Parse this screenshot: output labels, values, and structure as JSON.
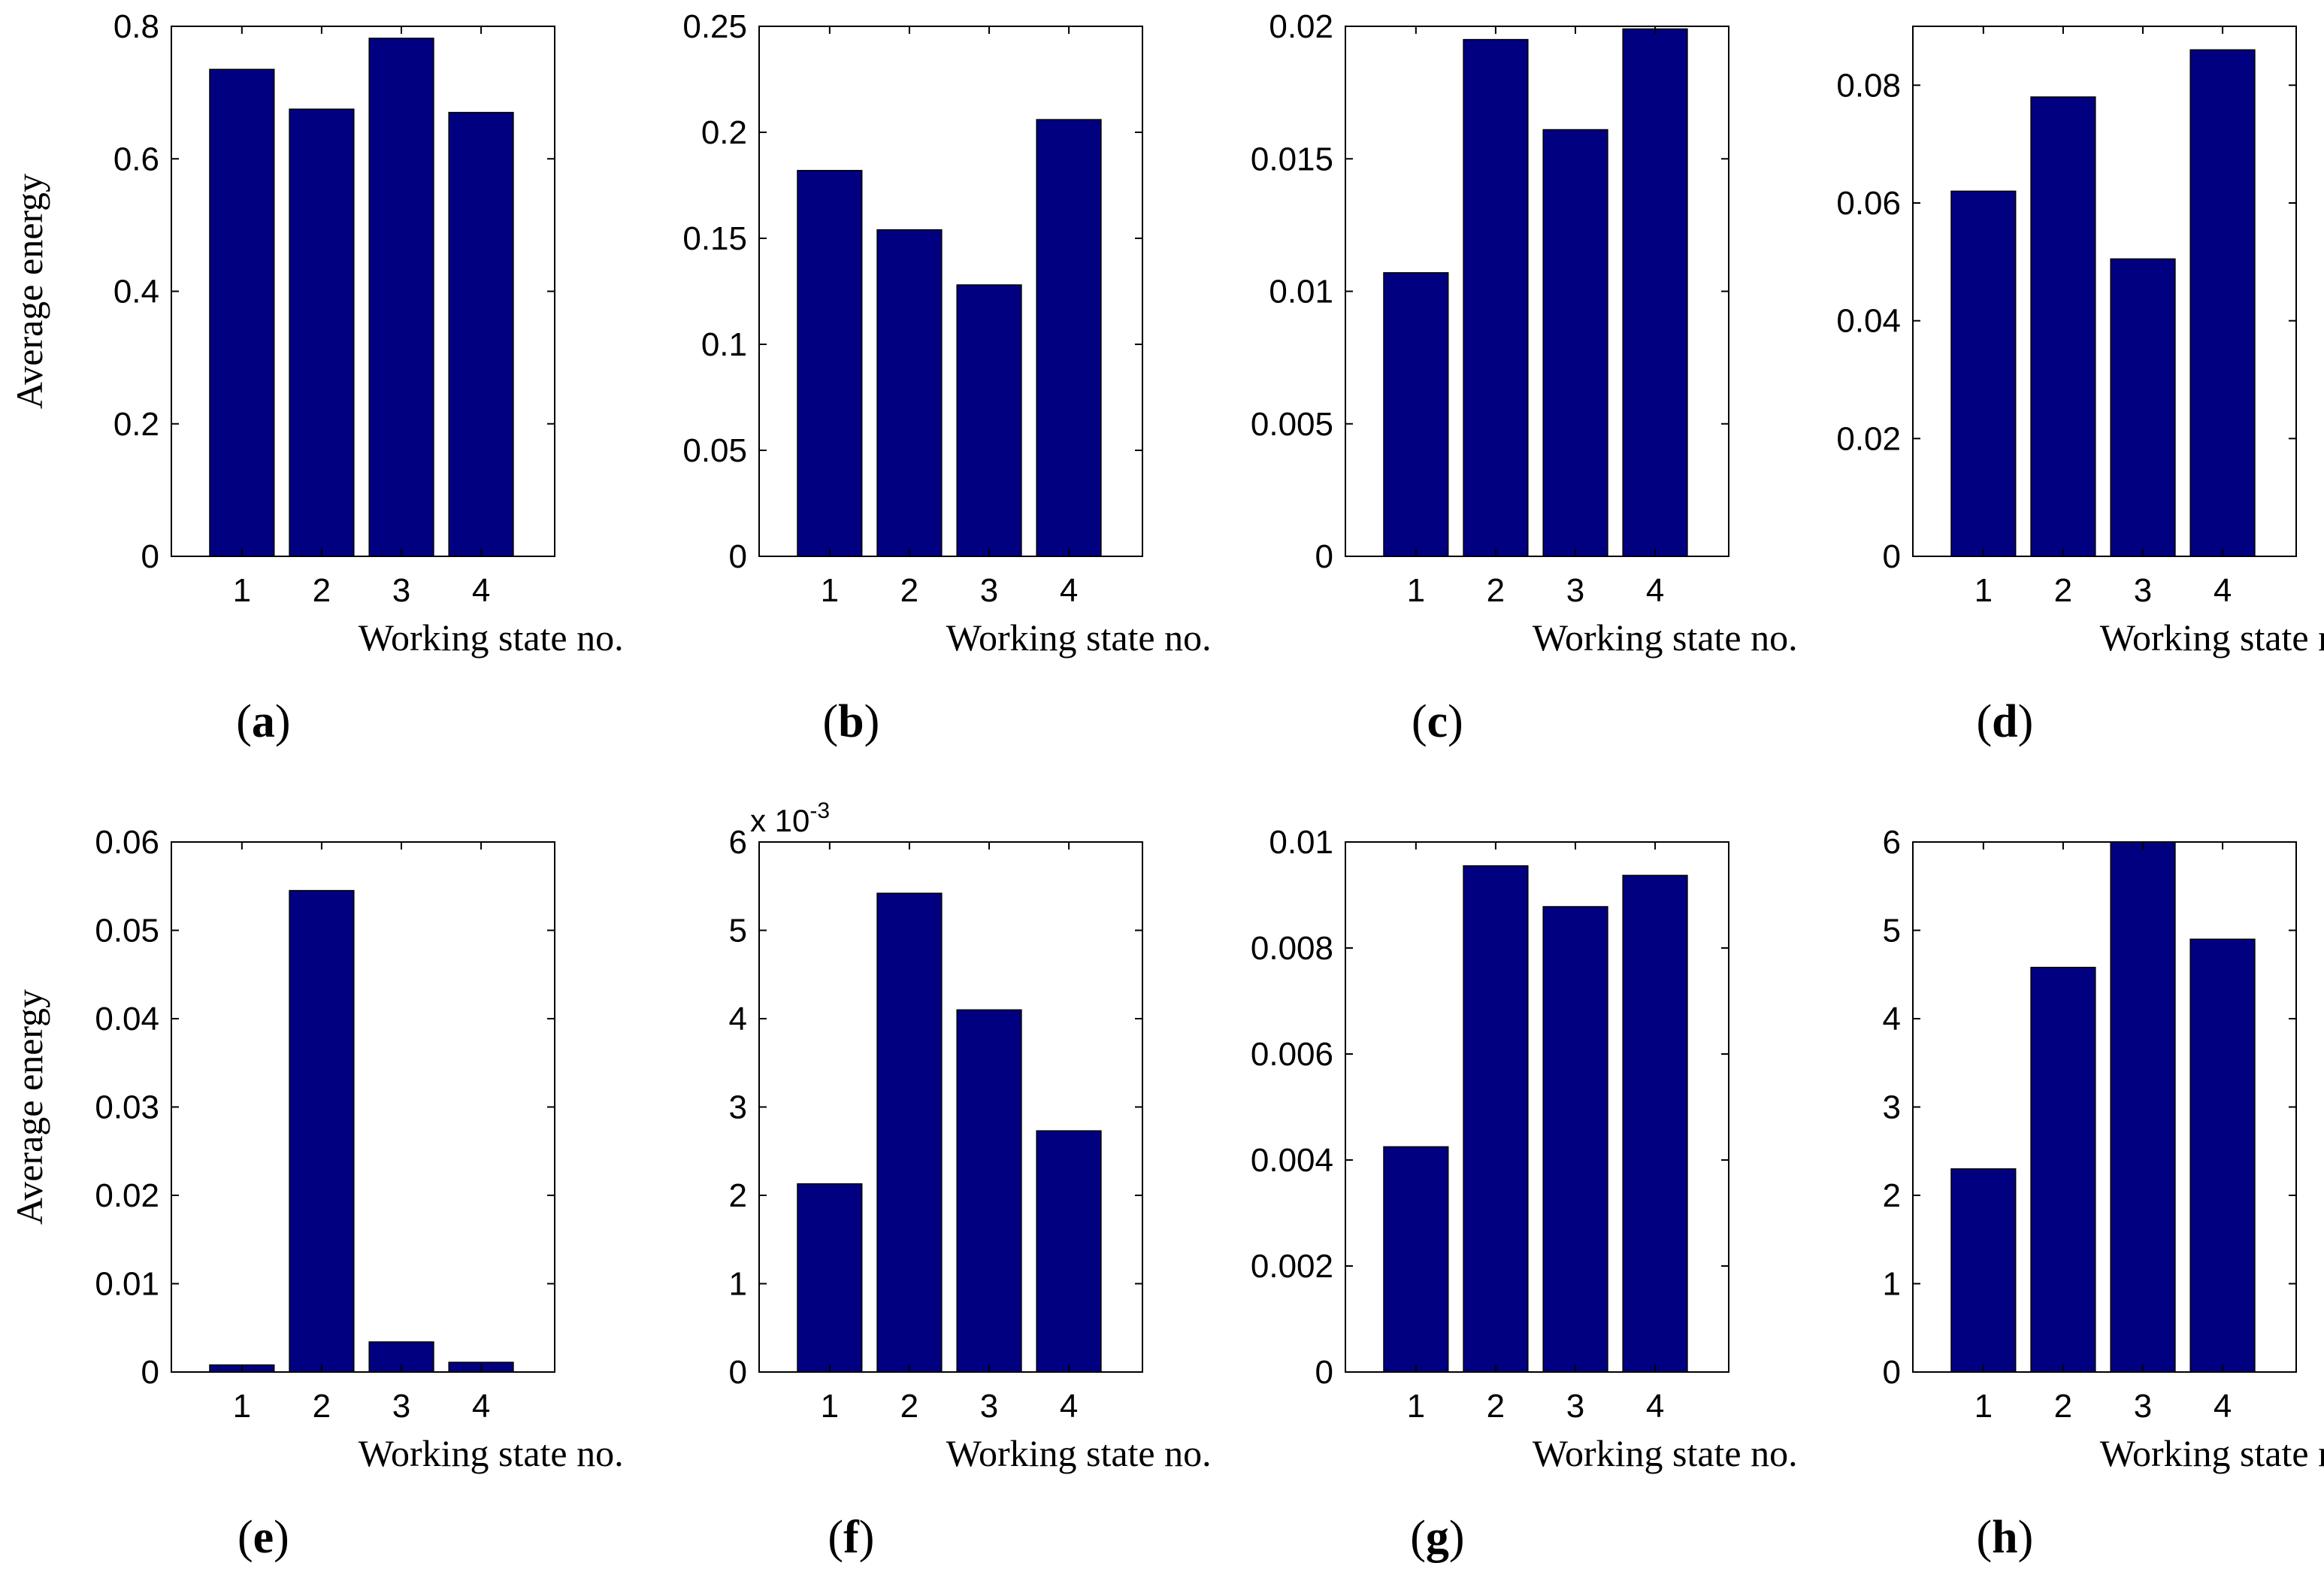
{
  "colors": {
    "bar": "#000080",
    "bar_edge": "#000000",
    "axis": "#000000",
    "background": "#ffffff"
  },
  "chart_data": [
    {
      "type": "bar",
      "panel": "a",
      "categories": [
        "1",
        "2",
        "3",
        "4"
      ],
      "values": [
        0.735,
        0.675,
        0.782,
        0.67
      ],
      "ylim": [
        0,
        0.8
      ],
      "yticks": [
        "0",
        "0.2",
        "0.4",
        "0.6",
        "0.8"
      ],
      "ytick_values": [
        0,
        0.2,
        0.4,
        0.6,
        0.8
      ],
      "xlabel": "Working state no.",
      "ylabel": "Average energy",
      "multiplier": null
    },
    {
      "type": "bar",
      "panel": "b",
      "categories": [
        "1",
        "2",
        "3",
        "4"
      ],
      "values": [
        0.182,
        0.154,
        0.128,
        0.206
      ],
      "ylim": [
        0,
        0.25
      ],
      "yticks": [
        "0",
        "0.05",
        "0.1",
        "0.15",
        "0.2",
        "0.25"
      ],
      "ytick_values": [
        0,
        0.05,
        0.1,
        0.15,
        0.2,
        0.25
      ],
      "xlabel": "Working state no.",
      "ylabel": "",
      "multiplier": null
    },
    {
      "type": "bar",
      "panel": "c",
      "categories": [
        "1",
        "2",
        "3",
        "4"
      ],
      "values": [
        0.0107,
        0.0195,
        0.0161,
        0.0199
      ],
      "ylim": [
        0,
        0.02
      ],
      "yticks": [
        "0",
        "0.005",
        "0.01",
        "0.015",
        "0.02"
      ],
      "ytick_values": [
        0,
        0.005,
        0.01,
        0.015,
        0.02
      ],
      "xlabel": "Working state no.",
      "ylabel": "",
      "multiplier": null
    },
    {
      "type": "bar",
      "panel": "d",
      "categories": [
        "1",
        "2",
        "3",
        "4"
      ],
      "values": [
        0.062,
        0.078,
        0.0505,
        0.086
      ],
      "ylim": [
        0,
        0.09
      ],
      "yticks": [
        "0",
        "0.02",
        "0.04",
        "0.06",
        "0.08"
      ],
      "ytick_values": [
        0,
        0.02,
        0.04,
        0.06,
        0.08
      ],
      "xlabel": "Working state no.",
      "ylabel": "",
      "multiplier": null
    },
    {
      "type": "bar",
      "panel": "e",
      "categories": [
        "1",
        "2",
        "3",
        "4"
      ],
      "values": [
        0.0008,
        0.0545,
        0.0034,
        0.0011
      ],
      "ylim": [
        0,
        0.06
      ],
      "yticks": [
        "0",
        "0.01",
        "0.02",
        "0.03",
        "0.04",
        "0.05",
        "0.06"
      ],
      "ytick_values": [
        0,
        0.01,
        0.02,
        0.03,
        0.04,
        0.05,
        0.06
      ],
      "xlabel": "Working state no.",
      "ylabel": "Average energy",
      "multiplier": null
    },
    {
      "type": "bar",
      "panel": "f",
      "categories": [
        "1",
        "2",
        "3",
        "4"
      ],
      "values": [
        2.13,
        5.42,
        4.1,
        2.73
      ],
      "ylim": [
        0,
        6
      ],
      "yticks": [
        "0",
        "1",
        "2",
        "3",
        "4",
        "5",
        "6"
      ],
      "ytick_values": [
        0,
        1,
        2,
        3,
        4,
        5,
        6
      ],
      "xlabel": "Working state no.",
      "ylabel": "",
      "multiplier": {
        "base": "x 10",
        "exponent": "-3"
      }
    },
    {
      "type": "bar",
      "panel": "g",
      "categories": [
        "1",
        "2",
        "3",
        "4"
      ],
      "values": [
        0.00425,
        0.00955,
        0.00878,
        0.00937
      ],
      "ylim": [
        0,
        0.01
      ],
      "yticks": [
        "0",
        "0.002",
        "0.004",
        "0.006",
        "0.008",
        "0.01"
      ],
      "ytick_values": [
        0,
        0.002,
        0.004,
        0.006,
        0.008,
        0.01
      ],
      "xlabel": "Working state no.",
      "ylabel": "",
      "multiplier": null
    },
    {
      "type": "bar",
      "panel": "h",
      "categories": [
        "1",
        "2",
        "3",
        "4"
      ],
      "values": [
        2.3,
        4.58,
        6.0,
        4.9
      ],
      "ylim": [
        0,
        6
      ],
      "yticks": [
        "0",
        "1",
        "2",
        "3",
        "4",
        "5",
        "6"
      ],
      "ytick_values": [
        0,
        1,
        2,
        3,
        4,
        5,
        6
      ],
      "xlabel": "Working state no.",
      "ylabel": "",
      "multiplier": null
    }
  ]
}
